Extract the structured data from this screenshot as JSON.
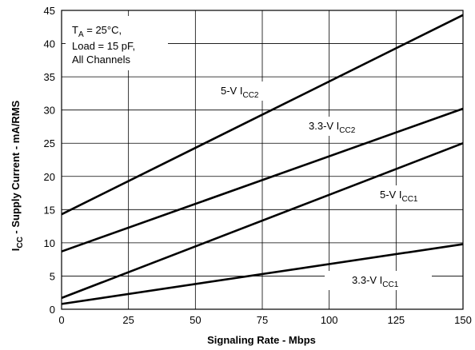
{
  "chart_data": {
    "type": "line",
    "x": [
      0,
      150
    ],
    "series": [
      {
        "name": "5-V I",
        "name_sub": "CC2",
        "values": [
          14.3,
          44.3
        ]
      },
      {
        "name": "3.3-V I",
        "name_sub": "CC2",
        "values": [
          8.7,
          30.2
        ]
      },
      {
        "name": "5-V I",
        "name_sub": "CC1",
        "values": [
          1.7,
          25.0
        ]
      },
      {
        "name": "3.3-V I",
        "name_sub": "CC1",
        "values": [
          0.8,
          9.8
        ]
      }
    ],
    "xlabel": "Signaling Rate - Mbps",
    "ylabel_main": "I",
    "ylabel_sub": "CC",
    "ylabel_rest": " - Supply Current - mA/RMS",
    "xlim": [
      0,
      150
    ],
    "ylim": [
      0,
      45
    ],
    "xticks": [
      0,
      25,
      50,
      75,
      100,
      125,
      150
    ],
    "yticks": [
      0,
      5,
      10,
      15,
      20,
      25,
      30,
      35,
      40,
      45
    ],
    "grid": true,
    "annotation": {
      "line1_main": "T",
      "line1_sub": "A",
      "line1_rest": " = 25°C,",
      "line2": "Load = 15 pF,",
      "line3": "All Channels"
    }
  }
}
